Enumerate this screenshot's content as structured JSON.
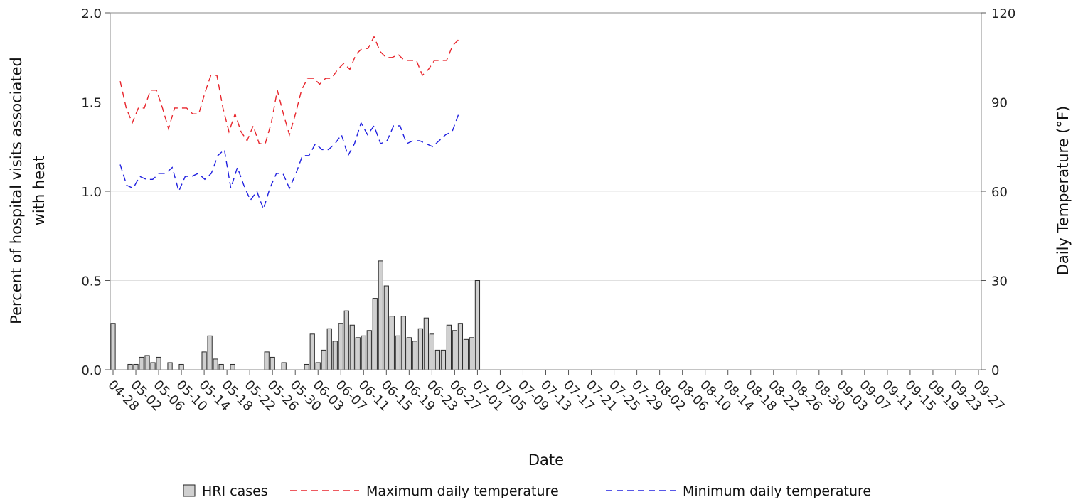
{
  "chart_data": {
    "type": "bar",
    "ylabel_lines": [
      "Percent of hospital visits associated",
      "with heat"
    ],
    "y2label": "Daily Temperature (°F)",
    "xlabel": "Date",
    "ylim": [
      0,
      2.0
    ],
    "y2lim": [
      0,
      120
    ],
    "yticks": [
      "0.0",
      "0.5",
      "1.0",
      "1.5",
      "2.0"
    ],
    "y2ticks": [
      "0",
      "30",
      "60",
      "90",
      "120"
    ],
    "grid": true,
    "legend_placement": "bottom-center",
    "x_tick_labels": [
      "04-28",
      "05-02",
      "05-06",
      "05-10",
      "05-14",
      "05-18",
      "05-22",
      "05-26",
      "05-30",
      "06-03",
      "06-07",
      "06-11",
      "06-15",
      "06-19",
      "06-23",
      "06-27",
      "07-01",
      "07-05",
      "07-09",
      "07-13",
      "07-17",
      "07-21",
      "07-25",
      "07-29",
      "08-02",
      "08-06",
      "08-10",
      "08-14",
      "08-18",
      "08-22",
      "08-26",
      "08-30",
      "09-03",
      "09-07",
      "09-11",
      "09-15",
      "09-19",
      "09-23",
      "09-27"
    ],
    "series": [
      {
        "name": "HRI cases",
        "type": "bar",
        "color": "#d0d0d0",
        "values": [
          0.26,
          0,
          0,
          0.03,
          0.03,
          0.07,
          0.08,
          0.04,
          0.07,
          0,
          0.04,
          0,
          0.03,
          0,
          0,
          0,
          0.1,
          0.19,
          0.06,
          0.03,
          0,
          0.03,
          0,
          0,
          0,
          0,
          0,
          0.1,
          0.07,
          0,
          0.04,
          0,
          0,
          0,
          0.03,
          0.2,
          0.04,
          0.11,
          0.23,
          0.16,
          0.26,
          0.33,
          0.25,
          0.18,
          0.19,
          0.22,
          0.4,
          0.61,
          0.47,
          0.3,
          0.19,
          0.3,
          0.18,
          0.16,
          0.23,
          0.29,
          0.2,
          0.11,
          0.11,
          0.25,
          0.22,
          0.26,
          0.17,
          0.18,
          0.5
        ]
      },
      {
        "name": "Maximum daily temperature",
        "type": "line",
        "color": "#e8242b",
        "values": [
          97,
          88,
          83,
          88,
          88,
          94,
          94,
          88,
          81,
          88,
          88,
          88,
          86,
          86,
          93,
          99,
          99,
          88,
          80,
          86,
          80,
          77,
          82,
          76,
          76,
          83,
          94,
          86,
          79,
          86,
          94,
          98,
          98,
          96,
          98,
          98,
          101,
          103,
          101,
          106,
          108,
          108,
          112,
          107,
          105,
          105,
          106,
          104,
          104,
          104,
          99,
          101,
          104,
          104,
          104,
          109,
          111
        ]
      },
      {
        "name": "Minimum daily temperature",
        "type": "line",
        "color": "#2020e0",
        "values": [
          69,
          62,
          61,
          65,
          64,
          64,
          66,
          66,
          68,
          60,
          65,
          65,
          66,
          64,
          66,
          72,
          74,
          61,
          68,
          62,
          57,
          60,
          54,
          61,
          66,
          66,
          61,
          66,
          72,
          72,
          76,
          74,
          74,
          76,
          79,
          72,
          76,
          83,
          79,
          82,
          76,
          77,
          82,
          82,
          76,
          77,
          77,
          76,
          75,
          77,
          79,
          80,
          86
        ]
      }
    ]
  }
}
